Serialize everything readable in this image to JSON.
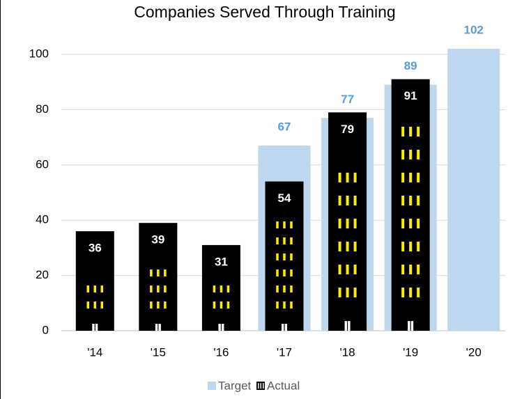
{
  "chart_data": {
    "type": "bar",
    "title": "Companies Served Through Training",
    "categories": [
      "'14",
      "'15",
      "'16",
      "'17",
      "'18",
      "'19",
      "'20"
    ],
    "series": [
      {
        "name": "Target",
        "color": "#bdd7ee",
        "values": [
          null,
          null,
          null,
          67,
          77,
          89,
          102
        ]
      },
      {
        "name": "Actual",
        "color": "#000000",
        "values": [
          36,
          39,
          31,
          54,
          79,
          91,
          null
        ]
      }
    ],
    "ylim": [
      0,
      100
    ],
    "yticks": [
      0,
      20,
      40,
      60,
      80,
      100
    ],
    "grid": true,
    "legend": "bottom"
  }
}
